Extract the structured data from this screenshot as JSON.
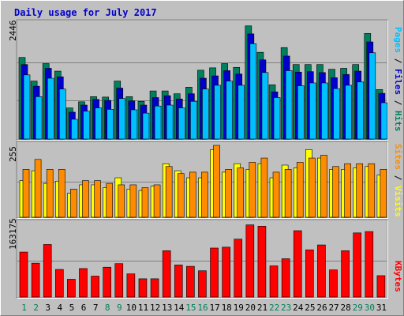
{
  "chart_data": [
    {
      "type": "bar",
      "title": "Daily usage for July 2017",
      "panel": "pages-files-hits",
      "ylabel_parts": [
        "Pages",
        "Files",
        "Hits"
      ],
      "ymax_label": "2446",
      "ylim": [
        0,
        2446
      ],
      "categories": [
        "1",
        "2",
        "3",
        "4",
        "5",
        "6",
        "7",
        "8",
        "9",
        "10",
        "11",
        "12",
        "13",
        "14",
        "15",
        "16",
        "17",
        "18",
        "19",
        "20",
        "21",
        "22",
        "23",
        "24",
        "25",
        "26",
        "27",
        "28",
        "29",
        "30",
        "31"
      ],
      "weekend_days": [
        "1",
        "2",
        "8",
        "9",
        "15",
        "16",
        "22",
        "23",
        "29",
        "30"
      ],
      "series": [
        {
          "name": "Hits",
          "color": "#00805c",
          "values": [
            1730,
            1230,
            1600,
            1440,
            660,
            790,
            900,
            890,
            1230,
            900,
            800,
            1020,
            1020,
            960,
            1100,
            1460,
            1510,
            1600,
            1520,
            2400,
            1840,
            1150,
            1940,
            1580,
            1580,
            1580,
            1480,
            1500,
            1580,
            2240,
            1050
          ]
        },
        {
          "name": "Files",
          "color": "#0000cc",
          "values": [
            1580,
            1120,
            1500,
            1320,
            570,
            720,
            840,
            820,
            1080,
            810,
            720,
            880,
            920,
            850,
            960,
            1290,
            1340,
            1450,
            1380,
            2230,
            1680,
            1000,
            1760,
            1420,
            1430,
            1410,
            1300,
            1370,
            1440,
            2060,
            970
          ]
        },
        {
          "name": "Pages",
          "color": "#00bfff",
          "values": [
            1360,
            900,
            1290,
            1060,
            420,
            590,
            660,
            630,
            860,
            620,
            550,
            700,
            720,
            660,
            800,
            1060,
            1140,
            1230,
            1140,
            2020,
            1410,
            880,
            1450,
            1130,
            1190,
            1190,
            1070,
            1140,
            1210,
            1830,
            770
          ]
        }
      ]
    },
    {
      "type": "bar",
      "panel": "sites-visits",
      "ylabel_parts": [
        "Sites",
        "Visits"
      ],
      "ymax_label": "255",
      "ylim": [
        0,
        255
      ],
      "categories": [
        "1",
        "2",
        "3",
        "4",
        "5",
        "6",
        "7",
        "8",
        "9",
        "10",
        "11",
        "12",
        "13",
        "14",
        "15",
        "16",
        "17",
        "18",
        "19",
        "20",
        "21",
        "22",
        "23",
        "24",
        "25",
        "26",
        "27",
        "28",
        "29",
        "30",
        "31"
      ],
      "series": [
        {
          "name": "Visits",
          "color": "#ffff00",
          "values": [
            130,
            165,
            120,
            128,
            85,
            115,
            115,
            105,
            140,
            100,
            95,
            110,
            190,
            165,
            140,
            140,
            240,
            160,
            190,
            170,
            190,
            140,
            185,
            175,
            240,
            210,
            170,
            170,
            175,
            180,
            150
          ]
        },
        {
          "name": "Sites",
          "color": "#ff8c00",
          "values": [
            170,
            205,
            170,
            170,
            100,
            130,
            130,
            120,
            115,
            115,
            105,
            115,
            180,
            155,
            160,
            160,
            255,
            170,
            175,
            195,
            210,
            160,
            170,
            195,
            210,
            220,
            180,
            190,
            190,
            190,
            170
          ]
        }
      ]
    },
    {
      "type": "bar",
      "panel": "kbytes",
      "ylabel_parts": [
        "KBytes"
      ],
      "ymax_label": "163175",
      "ylim": [
        0,
        163175
      ],
      "categories": [
        "1",
        "2",
        "3",
        "4",
        "5",
        "6",
        "7",
        "8",
        "9",
        "10",
        "11",
        "12",
        "13",
        "14",
        "15",
        "16",
        "17",
        "18",
        "19",
        "20",
        "21",
        "22",
        "23",
        "24",
        "25",
        "26",
        "27",
        "28",
        "29",
        "30",
        "31"
      ],
      "series": [
        {
          "name": "KBytes",
          "color": "#ff0000",
          "values": [
            101000,
            76000,
            118000,
            62000,
            40000,
            64000,
            47000,
            67000,
            75000,
            52000,
            41000,
            41000,
            104000,
            72000,
            69000,
            59000,
            110000,
            112000,
            130000,
            162000,
            159000,
            70000,
            86000,
            149000,
            106000,
            117000,
            61000,
            104000,
            144000,
            147000,
            48000
          ]
        }
      ]
    }
  ]
}
